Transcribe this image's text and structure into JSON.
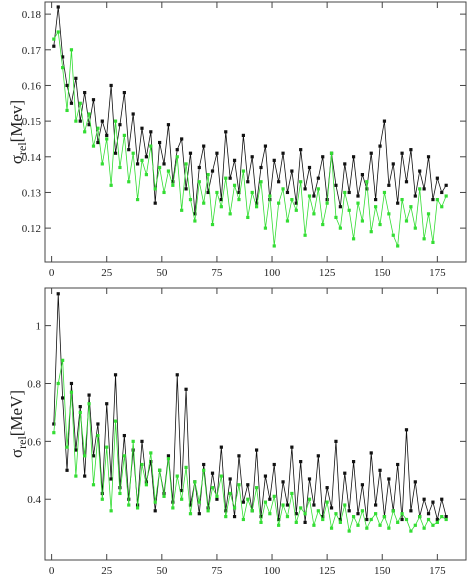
{
  "chart_data": [
    {
      "type": "line",
      "ylabel": {
        "symbol": "σ",
        "subscript": "rel",
        "unit": "[Mev]"
      },
      "x": [
        1,
        3,
        5,
        7,
        9,
        11,
        13,
        15,
        17,
        19,
        21,
        23,
        25,
        27,
        29,
        31,
        33,
        35,
        37,
        39,
        41,
        43,
        45,
        47,
        49,
        51,
        53,
        55,
        57,
        59,
        61,
        63,
        65,
        67,
        69,
        71,
        73,
        75,
        77,
        79,
        81,
        83,
        85,
        87,
        89,
        91,
        93,
        95,
        97,
        99,
        101,
        103,
        105,
        107,
        109,
        111,
        113,
        115,
        117,
        119,
        121,
        123,
        125,
        127,
        129,
        131,
        133,
        135,
        137,
        139,
        141,
        143,
        145,
        147,
        149,
        151,
        153,
        155,
        157,
        159,
        161,
        163,
        165,
        167,
        169,
        171,
        173,
        175,
        177,
        179
      ],
      "series": [
        {
          "color": "#111111",
          "values": [
            0.171,
            0.182,
            0.168,
            0.16,
            0.155,
            0.162,
            0.15,
            0.158,
            0.149,
            0.156,
            0.144,
            0.15,
            0.146,
            0.16,
            0.141,
            0.149,
            0.158,
            0.142,
            0.152,
            0.138,
            0.148,
            0.14,
            0.147,
            0.127,
            0.144,
            0.138,
            0.149,
            0.133,
            0.142,
            0.145,
            0.131,
            0.141,
            0.124,
            0.137,
            0.143,
            0.13,
            0.136,
            0.141,
            0.128,
            0.147,
            0.134,
            0.139,
            0.13,
            0.146,
            0.133,
            0.14,
            0.127,
            0.137,
            0.143,
            0.128,
            0.139,
            0.133,
            0.141,
            0.13,
            0.136,
            0.127,
            0.142,
            0.131,
            0.137,
            0.129,
            0.134,
            0.14,
            0.128,
            0.141,
            0.132,
            0.126,
            0.138,
            0.13,
            0.14,
            0.129,
            0.135,
            0.131,
            0.141,
            0.128,
            0.143,
            0.15,
            0.132,
            0.138,
            0.127,
            0.141,
            0.133,
            0.142,
            0.129,
            0.136,
            0.131,
            0.14,
            0.128,
            0.134,
            0.13,
            0.132
          ]
        },
        {
          "color": "#33dd33",
          "values": [
            0.173,
            0.175,
            0.165,
            0.153,
            0.17,
            0.15,
            0.155,
            0.147,
            0.152,
            0.143,
            0.148,
            0.138,
            0.145,
            0.132,
            0.15,
            0.137,
            0.146,
            0.133,
            0.141,
            0.128,
            0.139,
            0.135,
            0.143,
            0.131,
            0.137,
            0.13,
            0.136,
            0.132,
            0.14,
            0.125,
            0.138,
            0.128,
            0.122,
            0.133,
            0.127,
            0.135,
            0.121,
            0.13,
            0.126,
            0.134,
            0.124,
            0.132,
            0.128,
            0.136,
            0.123,
            0.13,
            0.126,
            0.133,
            0.12,
            0.129,
            0.115,
            0.127,
            0.131,
            0.122,
            0.128,
            0.125,
            0.133,
            0.118,
            0.129,
            0.124,
            0.131,
            0.121,
            0.127,
            0.141,
            0.123,
            0.12,
            0.13,
            0.125,
            0.117,
            0.127,
            0.122,
            0.133,
            0.119,
            0.126,
            0.121,
            0.13,
            0.124,
            0.118,
            0.115,
            0.128,
            0.122,
            0.126,
            0.12,
            0.131,
            0.117,
            0.124,
            0.116,
            0.128,
            0.126,
            0.129
          ]
        }
      ],
      "xlim": [
        -3,
        188
      ],
      "xticks": [
        0,
        25,
        50,
        75,
        100,
        125,
        150,
        175
      ],
      "ylim": [
        0.1105,
        0.1834
      ],
      "yticks": [
        0.12,
        0.13,
        0.14,
        0.15,
        0.16,
        0.17,
        0.18
      ]
    },
    {
      "type": "line",
      "ylabel": {
        "symbol": "σ",
        "subscript": "rel",
        "unit": "[MeV]"
      },
      "x": [
        1,
        3,
        5,
        7,
        9,
        11,
        13,
        15,
        17,
        19,
        21,
        23,
        25,
        27,
        29,
        31,
        33,
        35,
        37,
        39,
        41,
        43,
        45,
        47,
        49,
        51,
        53,
        55,
        57,
        59,
        61,
        63,
        65,
        67,
        69,
        71,
        73,
        75,
        77,
        79,
        81,
        83,
        85,
        87,
        89,
        91,
        93,
        95,
        97,
        99,
        101,
        103,
        105,
        107,
        109,
        111,
        113,
        115,
        117,
        119,
        121,
        123,
        125,
        127,
        129,
        131,
        133,
        135,
        137,
        139,
        141,
        143,
        145,
        147,
        149,
        151,
        153,
        155,
        157,
        159,
        161,
        163,
        165,
        167,
        169,
        171,
        173,
        175,
        177,
        179
      ],
      "series": [
        {
          "color": "#111111",
          "values": [
            0.66,
            1.11,
            0.75,
            0.5,
            0.8,
            0.57,
            0.72,
            0.48,
            0.76,
            0.55,
            0.66,
            0.42,
            0.73,
            0.47,
            0.83,
            0.44,
            0.62,
            0.4,
            0.57,
            0.38,
            0.6,
            0.46,
            0.53,
            0.36,
            0.5,
            0.42,
            0.55,
            0.39,
            0.83,
            0.43,
            0.78,
            0.38,
            0.46,
            0.35,
            0.52,
            0.37,
            0.49,
            0.4,
            0.58,
            0.36,
            0.47,
            0.34,
            0.55,
            0.39,
            0.45,
            0.36,
            0.57,
            0.34,
            0.48,
            0.4,
            0.52,
            0.33,
            0.46,
            0.38,
            0.58,
            0.35,
            0.53,
            0.32,
            0.47,
            0.38,
            0.55,
            0.34,
            0.44,
            0.37,
            0.6,
            0.33,
            0.49,
            0.36,
            0.53,
            0.35,
            0.45,
            0.33,
            0.56,
            0.38,
            0.5,
            0.34,
            0.47,
            0.36,
            0.52,
            0.33,
            0.64,
            0.36,
            0.46,
            0.34,
            0.4,
            0.35,
            0.39,
            0.33,
            0.4,
            0.34
          ]
        },
        {
          "color": "#33dd33",
          "values": [
            0.63,
            0.8,
            0.88,
            0.58,
            0.77,
            0.48,
            0.7,
            0.55,
            0.73,
            0.45,
            0.62,
            0.4,
            0.58,
            0.36,
            0.67,
            0.42,
            0.55,
            0.38,
            0.6,
            0.37,
            0.52,
            0.45,
            0.56,
            0.39,
            0.5,
            0.41,
            0.54,
            0.37,
            0.48,
            0.4,
            0.51,
            0.35,
            0.46,
            0.39,
            0.5,
            0.36,
            0.44,
            0.41,
            0.48,
            0.34,
            0.42,
            0.37,
            0.45,
            0.33,
            0.4,
            0.36,
            0.44,
            0.32,
            0.39,
            0.35,
            0.41,
            0.31,
            0.38,
            0.34,
            0.42,
            0.32,
            0.37,
            0.35,
            0.4,
            0.31,
            0.36,
            0.33,
            0.39,
            0.3,
            0.35,
            0.32,
            0.38,
            0.29,
            0.34,
            0.31,
            0.36,
            0.3,
            0.33,
            0.35,
            0.31,
            0.34,
            0.3,
            0.36,
            0.32,
            0.35,
            0.33,
            0.29,
            0.31,
            0.34,
            0.3,
            0.33,
            0.31,
            0.32,
            0.34,
            0.33
          ]
        }
      ],
      "xlim": [
        -3,
        188
      ],
      "xticks": [
        0,
        25,
        50,
        75,
        100,
        125,
        150,
        175
      ],
      "ylim": [
        0.19,
        1.13
      ],
      "yticks": [
        0.4,
        0.6,
        0.8,
        1
      ]
    }
  ]
}
